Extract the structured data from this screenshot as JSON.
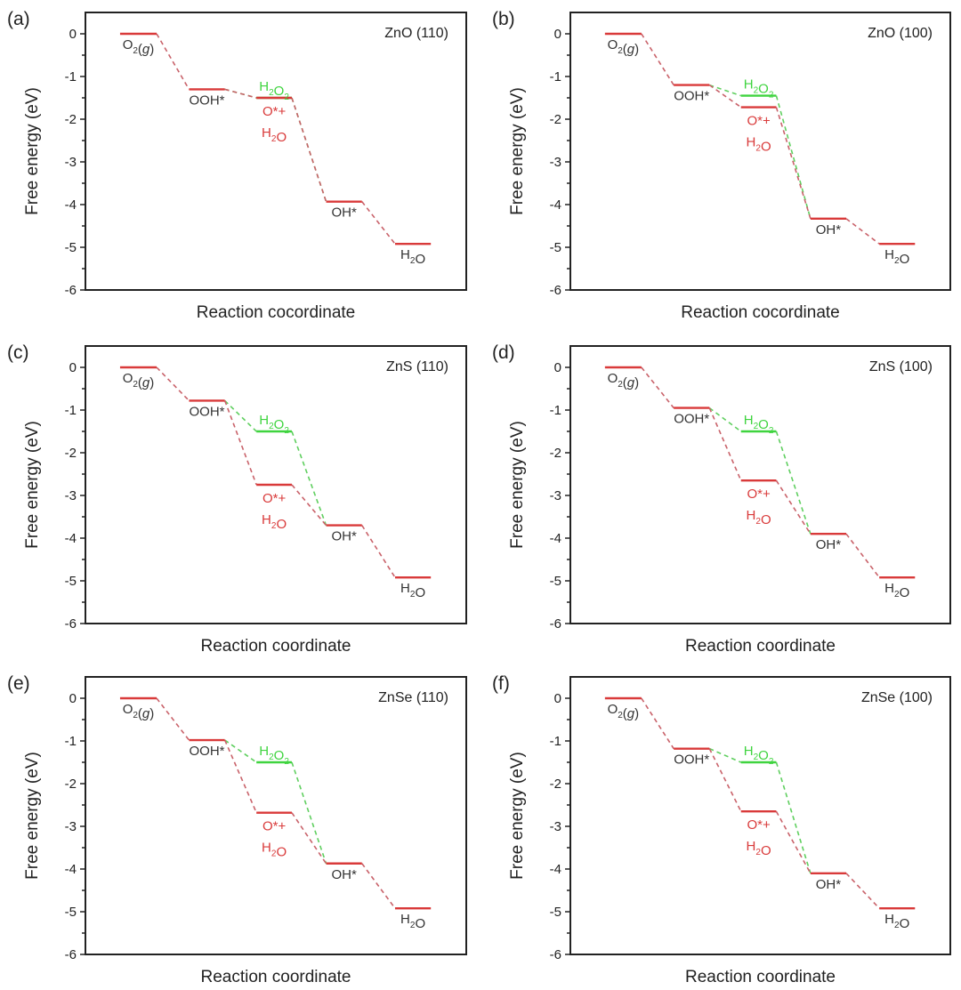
{
  "colors": {
    "red": "#d93a3a",
    "green": "#3fd43f",
    "red_dash": "#c9626a",
    "green_dash": "#5fcf5f",
    "axis": "#222222",
    "label": "#333333"
  },
  "chart_data": [
    {
      "panel": "(a)",
      "type": "line",
      "subtype": "free-energy-diagram",
      "title": "ZnO (110)",
      "xlabel": "Reaction cocordinate",
      "ylabel": "Free energy (eV)",
      "ylim": [
        -6,
        0.5
      ],
      "yticks": [
        0,
        -1,
        -2,
        -3,
        -4,
        -5,
        -6
      ],
      "ytick_labels": [
        "0",
        "-1",
        "-2",
        "-3",
        "-4",
        "-5",
        "-6"
      ],
      "grid": false,
      "levels": [
        {
          "id": "O2",
          "label": "O2(g)",
          "step": 0,
          "value": 0.0,
          "series": "4e"
        },
        {
          "id": "OOH",
          "label": "OOH*",
          "step": 1,
          "value": -1.3,
          "series": "4e"
        },
        {
          "id": "H2O2",
          "label": "H2O2",
          "step": 2,
          "value": -1.5,
          "series": "2e"
        },
        {
          "id": "O_H2O",
          "label": "O*+ H2O",
          "step": 2,
          "value": -1.5,
          "series": "4e"
        },
        {
          "id": "OH",
          "label": "OH*",
          "step": 3,
          "value": -3.93,
          "series": "4e"
        },
        {
          "id": "H2O",
          "label": "H2O",
          "step": 4,
          "value": -4.92,
          "series": "4e"
        }
      ]
    },
    {
      "panel": "(b)",
      "type": "line",
      "subtype": "free-energy-diagram",
      "title": "ZnO (100)",
      "xlabel": "Reaction cocordinate",
      "ylabel": "Free energy (eV)",
      "ylim": [
        -6,
        0.5
      ],
      "yticks": [
        0,
        -1,
        -2,
        -3,
        -4,
        -5,
        -6
      ],
      "ytick_labels": [
        "0",
        "-1",
        "-2",
        "-3",
        "-4",
        "-5",
        "-6"
      ],
      "grid": false,
      "levels": [
        {
          "id": "O2",
          "label": "O2(g)",
          "step": 0,
          "value": 0.0,
          "series": "4e"
        },
        {
          "id": "OOH",
          "label": "OOH*",
          "step": 1,
          "value": -1.2,
          "series": "4e"
        },
        {
          "id": "H2O2",
          "label": "H2O2",
          "step": 2,
          "value": -1.45,
          "series": "2e"
        },
        {
          "id": "O_H2O",
          "label": "O*+ H2O",
          "step": 2,
          "value": -1.72,
          "series": "4e"
        },
        {
          "id": "OH",
          "label": "OH*",
          "step": 3,
          "value": -4.33,
          "series": "4e"
        },
        {
          "id": "H2O",
          "label": "H2O",
          "step": 4,
          "value": -4.92,
          "series": "4e"
        }
      ]
    },
    {
      "panel": "(c)",
      "type": "line",
      "subtype": "free-energy-diagram",
      "title": "ZnS (110)",
      "xlabel": "Reaction coordinate",
      "ylabel": "Free energy (eV)",
      "ylim": [
        -6,
        0.5
      ],
      "yticks": [
        0,
        -1,
        -2,
        -3,
        -4,
        -5,
        -6
      ],
      "ytick_labels": [
        "0",
        "-1",
        "-2",
        "-3",
        "-4",
        "-5",
        "-6"
      ],
      "grid": false,
      "levels": [
        {
          "id": "O2",
          "label": "O2(g)",
          "step": 0,
          "value": 0.0,
          "series": "4e"
        },
        {
          "id": "OOH",
          "label": "OOH*",
          "step": 1,
          "value": -0.78,
          "series": "4e"
        },
        {
          "id": "H2O2",
          "label": "H2O2",
          "step": 2,
          "value": -1.5,
          "series": "2e"
        },
        {
          "id": "O_H2O",
          "label": "O*+ H2O",
          "step": 2,
          "value": -2.75,
          "series": "4e"
        },
        {
          "id": "OH",
          "label": "OH*",
          "step": 3,
          "value": -3.7,
          "series": "4e"
        },
        {
          "id": "H2O",
          "label": "H2O",
          "step": 4,
          "value": -4.92,
          "series": "4e"
        }
      ]
    },
    {
      "panel": "(d)",
      "type": "line",
      "subtype": "free-energy-diagram",
      "title": "ZnS (100)",
      "xlabel": "Reaction coordinate",
      "ylabel": "Free energy (eV)",
      "ylim": [
        -6,
        0.5
      ],
      "yticks": [
        0,
        -1,
        -2,
        -3,
        -4,
        -5,
        -6
      ],
      "ytick_labels": [
        "0",
        "-1",
        "-2",
        "-3",
        "-4",
        "-5",
        "-6"
      ],
      "grid": false,
      "levels": [
        {
          "id": "O2",
          "label": "O2(g)",
          "step": 0,
          "value": 0.0,
          "series": "4e"
        },
        {
          "id": "OOH",
          "label": "OOH*",
          "step": 1,
          "value": -0.95,
          "series": "4e"
        },
        {
          "id": "H2O2",
          "label": "H2O2",
          "step": 2,
          "value": -1.5,
          "series": "2e"
        },
        {
          "id": "O_H2O",
          "label": "O*+ H2O",
          "step": 2,
          "value": -2.65,
          "series": "4e"
        },
        {
          "id": "OH",
          "label": "OH*",
          "step": 3,
          "value": -3.9,
          "series": "4e"
        },
        {
          "id": "H2O",
          "label": "H2O",
          "step": 4,
          "value": -4.92,
          "series": "4e"
        }
      ]
    },
    {
      "panel": "(e)",
      "type": "line",
      "subtype": "free-energy-diagram",
      "title": "ZnSe (110)",
      "xlabel": "Reaction coordinate",
      "ylabel": "Free energy (eV)",
      "ylim": [
        -6,
        0.5
      ],
      "yticks": [
        0,
        -1,
        -2,
        -3,
        -4,
        -5,
        -6
      ],
      "ytick_labels": [
        "0",
        "-1",
        "-2",
        "-3",
        "-4",
        "-5",
        "-6"
      ],
      "grid": false,
      "levels": [
        {
          "id": "O2",
          "label": "O2(g)",
          "step": 0,
          "value": 0.0,
          "series": "4e"
        },
        {
          "id": "OOH",
          "label": "OOH*",
          "step": 1,
          "value": -0.98,
          "series": "4e"
        },
        {
          "id": "H2O2",
          "label": "H2O2",
          "step": 2,
          "value": -1.5,
          "series": "2e"
        },
        {
          "id": "O_H2O",
          "label": "O*+ H2O",
          "step": 2,
          "value": -2.68,
          "series": "4e"
        },
        {
          "id": "OH",
          "label": "OH*",
          "step": 3,
          "value": -3.87,
          "series": "4e"
        },
        {
          "id": "H2O",
          "label": "H2O",
          "step": 4,
          "value": -4.92,
          "series": "4e"
        }
      ]
    },
    {
      "panel": "(f)",
      "type": "line",
      "subtype": "free-energy-diagram",
      "title": "ZnSe (100)",
      "xlabel": "Reaction coordinate",
      "ylabel": "Free energy (eV)",
      "ylim": [
        -6,
        0.5
      ],
      "yticks": [
        0,
        -1,
        -2,
        -3,
        -4,
        -5,
        -6
      ],
      "ytick_labels": [
        "0",
        "-1",
        "-2",
        "-3",
        "-4",
        "-5",
        "-6"
      ],
      "grid": false,
      "levels": [
        {
          "id": "O2",
          "label": "O2(g)",
          "step": 0,
          "value": 0.0,
          "series": "4e"
        },
        {
          "id": "OOH",
          "label": "OOH*",
          "step": 1,
          "value": -1.18,
          "series": "4e"
        },
        {
          "id": "H2O2",
          "label": "H2O2",
          "step": 2,
          "value": -1.5,
          "series": "2e"
        },
        {
          "id": "O_H2O",
          "label": "O*+ H2O",
          "step": 2,
          "value": -2.65,
          "series": "4e"
        },
        {
          "id": "OH",
          "label": "OH*",
          "step": 3,
          "value": -4.1,
          "series": "4e"
        },
        {
          "id": "H2O",
          "label": "H2O",
          "step": 4,
          "value": -4.92,
          "series": "4e"
        }
      ]
    }
  ]
}
